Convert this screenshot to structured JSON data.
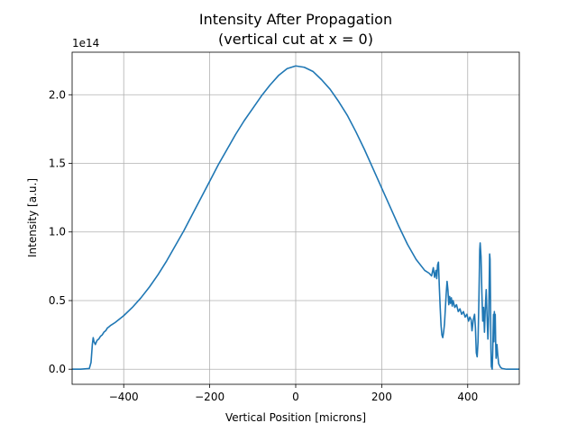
{
  "chart_data": {
    "type": "line",
    "title": "Intensity After Propagation",
    "subtitle": "(vertical cut at x = 0)",
    "xlabel": "Vertical Position [microns]",
    "ylabel": "Intensity [a.u.]",
    "y_offset_label": "1e14",
    "xlim": [
      -520,
      520
    ],
    "ylim": [
      -0.11,
      2.31
    ],
    "grid": true,
    "x_ticks": [
      -400,
      -200,
      0,
      200,
      400
    ],
    "x_tick_labels": [
      "−400",
      "−200",
      "0",
      "200",
      "400"
    ],
    "y_ticks": [
      0.0,
      0.5,
      1.0,
      1.5,
      2.0
    ],
    "y_tick_labels": [
      "0.0",
      "0.5",
      "1.0",
      "1.5",
      "2.0"
    ],
    "series": [
      {
        "color": "#1f77b4",
        "points": [
          [
            -520,
            0.0
          ],
          [
            -500,
            0.0
          ],
          [
            -480,
            0.005
          ],
          [
            -476,
            0.05
          ],
          [
            -473,
            0.18
          ],
          [
            -471,
            0.23
          ],
          [
            -469,
            0.2
          ],
          [
            -466,
            0.18
          ],
          [
            -462,
            0.21
          ],
          [
            -458,
            0.22
          ],
          [
            -454,
            0.24
          ],
          [
            -450,
            0.25
          ],
          [
            -446,
            0.27
          ],
          [
            -442,
            0.28
          ],
          [
            -438,
            0.3
          ],
          [
            -434,
            0.31
          ],
          [
            -430,
            0.32
          ],
          [
            -420,
            0.34
          ],
          [
            -400,
            0.39
          ],
          [
            -380,
            0.45
          ],
          [
            -360,
            0.52
          ],
          [
            -340,
            0.6
          ],
          [
            -320,
            0.69
          ],
          [
            -300,
            0.79
          ],
          [
            -280,
            0.9
          ],
          [
            -260,
            1.01
          ],
          [
            -240,
            1.13
          ],
          [
            -220,
            1.25
          ],
          [
            -200,
            1.37
          ],
          [
            -180,
            1.49
          ],
          [
            -160,
            1.6
          ],
          [
            -140,
            1.71
          ],
          [
            -120,
            1.81
          ],
          [
            -100,
            1.9
          ],
          [
            -80,
            1.99
          ],
          [
            -60,
            2.07
          ],
          [
            -40,
            2.14
          ],
          [
            -20,
            2.19
          ],
          [
            0,
            2.21
          ],
          [
            20,
            2.2
          ],
          [
            40,
            2.17
          ],
          [
            60,
            2.11
          ],
          [
            80,
            2.04
          ],
          [
            100,
            1.95
          ],
          [
            120,
            1.85
          ],
          [
            140,
            1.73
          ],
          [
            160,
            1.6
          ],
          [
            180,
            1.46
          ],
          [
            200,
            1.32
          ],
          [
            220,
            1.18
          ],
          [
            240,
            1.04
          ],
          [
            260,
            0.91
          ],
          [
            280,
            0.8
          ],
          [
            300,
            0.72
          ],
          [
            310,
            0.7
          ],
          [
            316,
            0.68
          ],
          [
            320,
            0.74
          ],
          [
            323,
            0.67
          ],
          [
            326,
            0.72
          ],
          [
            328,
            0.66
          ],
          [
            330,
            0.76
          ],
          [
            332,
            0.78
          ],
          [
            334,
            0.6
          ],
          [
            336,
            0.45
          ],
          [
            338,
            0.32
          ],
          [
            340,
            0.25
          ],
          [
            342,
            0.23
          ],
          [
            344,
            0.27
          ],
          [
            346,
            0.33
          ],
          [
            348,
            0.44
          ],
          [
            350,
            0.55
          ],
          [
            352,
            0.64
          ],
          [
            354,
            0.58
          ],
          [
            356,
            0.47
          ],
          [
            358,
            0.53
          ],
          [
            360,
            0.48
          ],
          [
            362,
            0.52
          ],
          [
            364,
            0.46
          ],
          [
            366,
            0.5
          ],
          [
            370,
            0.45
          ],
          [
            374,
            0.47
          ],
          [
            378,
            0.42
          ],
          [
            382,
            0.44
          ],
          [
            386,
            0.4
          ],
          [
            390,
            0.42
          ],
          [
            394,
            0.38
          ],
          [
            398,
            0.4
          ],
          [
            402,
            0.35
          ],
          [
            405,
            0.38
          ],
          [
            408,
            0.36
          ],
          [
            410,
            0.28
          ],
          [
            413,
            0.36
          ],
          [
            416,
            0.4
          ],
          [
            418,
            0.3
          ],
          [
            420,
            0.12
          ],
          [
            422,
            0.09
          ],
          [
            424,
            0.2
          ],
          [
            426,
            0.5
          ],
          [
            428,
            0.87
          ],
          [
            429,
            0.92
          ],
          [
            431,
            0.82
          ],
          [
            433,
            0.55
          ],
          [
            435,
            0.35
          ],
          [
            437,
            0.45
          ],
          [
            439,
            0.27
          ],
          [
            441,
            0.45
          ],
          [
            443,
            0.58
          ],
          [
            445,
            0.39
          ],
          [
            447,
            0.22
          ],
          [
            449,
            0.4
          ],
          [
            451,
            0.84
          ],
          [
            452,
            0.8
          ],
          [
            453,
            0.5
          ],
          [
            454,
            0.15
          ],
          [
            455,
            0.02
          ],
          [
            457,
            0.0
          ],
          [
            458,
            0.1
          ],
          [
            459,
            0.25
          ],
          [
            460,
            0.4
          ],
          [
            461,
            0.2
          ],
          [
            462,
            0.42
          ],
          [
            463,
            0.3
          ],
          [
            464,
            0.4
          ],
          [
            465,
            0.2
          ],
          [
            466,
            0.08
          ],
          [
            468,
            0.18
          ],
          [
            470,
            0.1
          ],
          [
            472,
            0.04
          ],
          [
            476,
            0.015
          ],
          [
            480,
            0.005
          ],
          [
            490,
            0.0
          ],
          [
            520,
            0.0
          ]
        ]
      }
    ]
  }
}
